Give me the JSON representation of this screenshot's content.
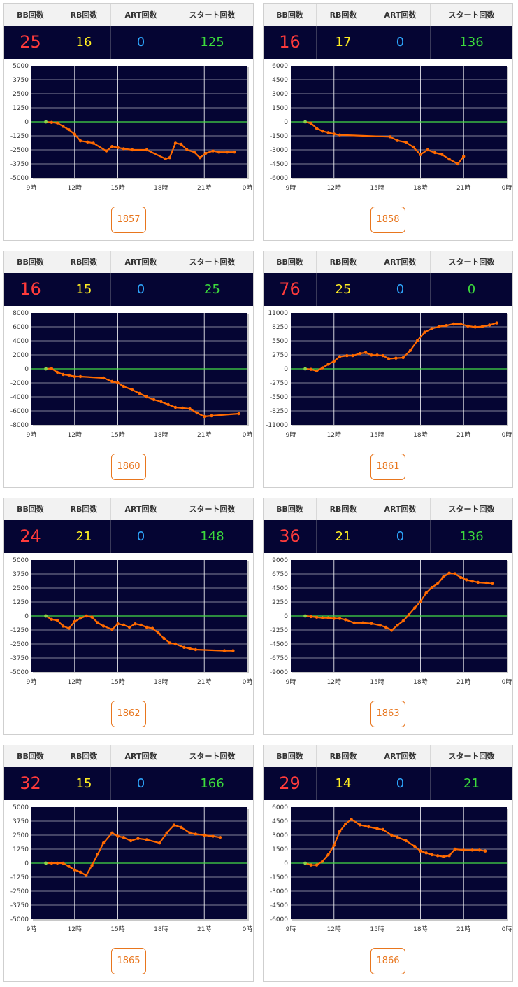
{
  "headers": {
    "bb": "BB回数",
    "rb": "RB回数",
    "art": "ART回数",
    "start": "スタート回数"
  },
  "colors": {
    "plot_bg": "#050533",
    "line": "#ff6a00",
    "zero_line": "#44dd44",
    "grid": "#ffffff"
  },
  "cards": [
    {
      "bb": "25",
      "rb": "16",
      "art": "0",
      "start": "125",
      "machine": "1857"
    },
    {
      "bb": "16",
      "rb": "17",
      "art": "0",
      "start": "136",
      "machine": "1858"
    },
    {
      "bb": "16",
      "rb": "15",
      "art": "0",
      "start": "25",
      "machine": "1860"
    },
    {
      "bb": "76",
      "rb": "25",
      "art": "0",
      "start": "0",
      "machine": "1861"
    },
    {
      "bb": "24",
      "rb": "21",
      "art": "0",
      "start": "148",
      "machine": "1862"
    },
    {
      "bb": "36",
      "rb": "21",
      "art": "0",
      "start": "136",
      "machine": "1863"
    },
    {
      "bb": "32",
      "rb": "15",
      "art": "0",
      "start": "166",
      "machine": "1865"
    },
    {
      "bb": "29",
      "rb": "14",
      "art": "0",
      "start": "21",
      "machine": "1866"
    }
  ],
  "chart_data": [
    {
      "type": "line",
      "x_ticks": [
        "9時",
        "12時",
        "15時",
        "18時",
        "21時",
        "0時"
      ],
      "xlim": [
        9,
        24
      ],
      "y_ticks": [
        5000,
        3750,
        2500,
        1250,
        0,
        -1250,
        -2500,
        -3750,
        -5000
      ],
      "ylim": [
        -5000,
        5000
      ],
      "x": [
        10.0,
        10.4,
        10.8,
        11.2,
        11.6,
        12.0,
        12.4,
        12.9,
        13.3,
        14.2,
        14.6,
        15.0,
        15.4,
        16.0,
        17.0,
        18.3,
        18.6,
        19.0,
        19.4,
        19.8,
        20.3,
        20.7,
        21.1,
        21.6,
        22.0,
        22.6,
        23.1
      ],
      "y": [
        0,
        -50,
        -100,
        -400,
        -700,
        -1100,
        -1700,
        -1800,
        -1900,
        -2600,
        -2200,
        -2300,
        -2400,
        -2500,
        -2500,
        -3300,
        -3200,
        -1900,
        -2000,
        -2500,
        -2700,
        -3200,
        -2800,
        -2600,
        -2700,
        -2700,
        -2700
      ]
    },
    {
      "type": "line",
      "x_ticks": [
        "9時",
        "12時",
        "15時",
        "18時",
        "21時",
        "0時"
      ],
      "xlim": [
        9,
        24
      ],
      "y_ticks": [
        6000,
        4500,
        3000,
        1500,
        0,
        -1500,
        -3000,
        -4500,
        -6000
      ],
      "ylim": [
        -6000,
        6000
      ],
      "x": [
        10.0,
        10.4,
        10.8,
        11.2,
        11.6,
        12.0,
        12.4,
        15.9,
        16.4,
        17.0,
        17.5,
        18.0,
        18.5,
        19.0,
        19.5,
        20.0,
        20.6,
        21.0
      ],
      "y": [
        0,
        -150,
        -700,
        -1000,
        -1150,
        -1300,
        -1400,
        -1600,
        -2000,
        -2200,
        -2700,
        -3500,
        -3000,
        -3300,
        -3500,
        -4000,
        -4500,
        -3700
      ]
    },
    {
      "type": "line",
      "x_ticks": [
        "9時",
        "12時",
        "15時",
        "18時",
        "21時",
        "0時"
      ],
      "xlim": [
        9,
        24
      ],
      "y_ticks": [
        8000,
        6000,
        4000,
        2000,
        0,
        -2000,
        -4000,
        -6000,
        -8000
      ],
      "ylim": [
        -8000,
        8000
      ],
      "x": [
        10.0,
        10.4,
        10.8,
        11.2,
        11.6,
        12.0,
        12.4,
        14.0,
        14.6,
        15.0,
        15.4,
        16.0,
        16.5,
        17.0,
        17.5,
        18.0,
        18.5,
        19.0,
        19.5,
        20.0,
        20.5,
        21.0,
        21.5,
        23.4
      ],
      "y": [
        0,
        50,
        -500,
        -800,
        -900,
        -1100,
        -1100,
        -1300,
        -1800,
        -2000,
        -2500,
        -3000,
        -3500,
        -4000,
        -4400,
        -4700,
        -5100,
        -5500,
        -5600,
        -5700,
        -6300,
        -6800,
        -6700,
        -6400
      ]
    },
    {
      "type": "line",
      "x_ticks": [
        "9時",
        "12時",
        "15時",
        "18時",
        "21時",
        "0時"
      ],
      "xlim": [
        9,
        24
      ],
      "y_ticks": [
        11000,
        8250,
        5500,
        2750,
        0,
        -2750,
        -5500,
        -8250,
        -11000
      ],
      "ylim": [
        -11000,
        11000
      ],
      "x": [
        10.0,
        10.4,
        10.8,
        11.2,
        11.6,
        12.0,
        12.4,
        12.9,
        13.3,
        13.8,
        14.2,
        14.6,
        15.0,
        15.4,
        15.8,
        16.3,
        16.8,
        17.3,
        17.8,
        18.3,
        18.8,
        19.3,
        19.8,
        20.3,
        20.8,
        21.3,
        21.8,
        22.3,
        22.8,
        23.3
      ],
      "y": [
        0,
        -100,
        -400,
        200,
        900,
        1500,
        2400,
        2600,
        2600,
        3000,
        3200,
        2700,
        2700,
        2600,
        2000,
        2100,
        2200,
        3600,
        5600,
        7200,
        7900,
        8300,
        8500,
        8800,
        8800,
        8400,
        8200,
        8300,
        8600,
        9000
      ]
    },
    {
      "type": "line",
      "x_ticks": [
        "9時",
        "12時",
        "15時",
        "18時",
        "21時",
        "0時"
      ],
      "xlim": [
        9,
        24
      ],
      "y_ticks": [
        5000,
        3750,
        2500,
        1250,
        0,
        -1250,
        -2500,
        -3750,
        -5000
      ],
      "ylim": [
        -5000,
        5000
      ],
      "x": [
        10.0,
        10.4,
        10.8,
        11.2,
        11.6,
        12.0,
        12.4,
        12.8,
        13.2,
        13.6,
        14.0,
        14.6,
        15.0,
        15.4,
        15.8,
        16.2,
        16.6,
        17.0,
        17.4,
        17.8,
        18.2,
        18.6,
        19.0,
        19.6,
        20.0,
        20.4,
        22.4,
        23.0
      ],
      "y": [
        0,
        -300,
        -400,
        -900,
        -1100,
        -500,
        -200,
        0,
        -100,
        -600,
        -900,
        -1200,
        -700,
        -800,
        -1000,
        -700,
        -800,
        -1000,
        -1100,
        -1500,
        -2000,
        -2400,
        -2500,
        -2800,
        -2900,
        -3000,
        -3100,
        -3100
      ]
    },
    {
      "type": "line",
      "x_ticks": [
        "9時",
        "12時",
        "15時",
        "18時",
        "21時",
        "0時"
      ],
      "xlim": [
        9,
        24
      ],
      "y_ticks": [
        9000,
        6750,
        4500,
        2250,
        0,
        -2250,
        -4500,
        -6750,
        -9000
      ],
      "ylim": [
        -9000,
        9000
      ],
      "x": [
        10.0,
        10.4,
        10.8,
        11.2,
        11.6,
        12.0,
        12.4,
        12.8,
        13.4,
        14.0,
        14.6,
        15.2,
        15.6,
        16.0,
        16.4,
        16.8,
        17.2,
        17.6,
        18.0,
        18.4,
        18.8,
        19.2,
        19.6,
        20.0,
        20.4,
        20.8,
        21.2,
        21.6,
        22.0,
        22.6,
        23.0
      ],
      "y": [
        0,
        -100,
        -200,
        -300,
        -300,
        -400,
        -400,
        -600,
        -1100,
        -1100,
        -1200,
        -1500,
        -1800,
        -2300,
        -1500,
        -800,
        200,
        1300,
        2300,
        3700,
        4600,
        5200,
        6300,
        6900,
        6800,
        6200,
        5800,
        5600,
        5400,
        5300,
        5200
      ]
    },
    {
      "type": "line",
      "x_ticks": [
        "9時",
        "12時",
        "15時",
        "18時",
        "21時",
        "0時"
      ],
      "xlim": [
        9,
        24
      ],
      "y_ticks": [
        5000,
        3750,
        2500,
        1250,
        0,
        -1250,
        -2500,
        -3750,
        -5000
      ],
      "ylim": [
        -5000,
        5000
      ],
      "x": [
        10.0,
        10.4,
        10.8,
        11.2,
        11.6,
        12.0,
        12.4,
        12.8,
        13.2,
        13.6,
        14.0,
        14.6,
        15.0,
        15.4,
        15.9,
        16.4,
        17.0,
        17.9,
        18.4,
        18.9,
        19.4,
        20.0,
        20.4,
        21.0,
        21.6,
        22.1
      ],
      "y": [
        0,
        0,
        0,
        0,
        -300,
        -600,
        -800,
        -1100,
        -200,
        800,
        1800,
        2700,
        2400,
        2300,
        2000,
        2200,
        2100,
        1800,
        2700,
        3400,
        3200,
        2700,
        2600,
        2500,
        2400,
        2300
      ]
    },
    {
      "type": "line",
      "x_ticks": [
        "9時",
        "12時",
        "15時",
        "18時",
        "21時",
        "0時"
      ],
      "xlim": [
        9,
        24
      ],
      "y_ticks": [
        6000,
        4500,
        3000,
        1500,
        0,
        -1500,
        -3000,
        -4500,
        -6000
      ],
      "ylim": [
        -6000,
        6000
      ],
      "x": [
        10.0,
        10.4,
        10.8,
        11.2,
        11.6,
        12.0,
        12.4,
        12.8,
        13.2,
        13.8,
        14.4,
        15.0,
        15.4,
        16.0,
        16.4,
        17.0,
        17.6,
        18.0,
        18.4,
        18.8,
        19.2,
        19.6,
        20.0,
        20.4,
        21.0,
        21.6,
        22.1,
        22.5
      ],
      "y": [
        0,
        -200,
        -200,
        200,
        900,
        1900,
        3400,
        4200,
        4700,
        4100,
        3900,
        3700,
        3600,
        3000,
        2800,
        2400,
        1800,
        1300,
        1100,
        900,
        800,
        700,
        800,
        1500,
        1400,
        1400,
        1400,
        1300
      ]
    }
  ]
}
